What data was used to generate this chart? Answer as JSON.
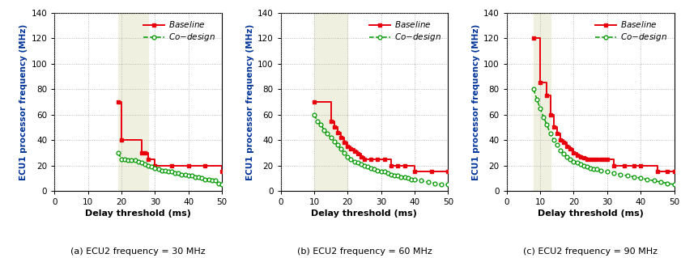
{
  "subplots": [
    {
      "title": "(a) ECU2 frequency = 30 MHz",
      "shaded_region": [
        19,
        28
      ],
      "baseline_x": [
        19,
        20,
        26,
        27,
        28,
        30,
        35,
        40,
        45,
        50
      ],
      "baseline_y": [
        70,
        40,
        30,
        30,
        25,
        20,
        20,
        20,
        20,
        15
      ],
      "codesign_x": [
        19,
        20,
        21,
        22,
        23,
        24,
        25,
        26,
        27,
        28,
        29,
        30,
        31,
        32,
        33,
        34,
        35,
        36,
        37,
        38,
        39,
        40,
        41,
        42,
        43,
        44,
        45,
        46,
        47,
        48,
        49,
        50
      ],
      "codesign_y": [
        30,
        25,
        25,
        24,
        24,
        24,
        23,
        22,
        21,
        20,
        19,
        18,
        17,
        16,
        16,
        15,
        15,
        14,
        14,
        13,
        13,
        12,
        12,
        11,
        11,
        10,
        9,
        9,
        8,
        8,
        6,
        5
      ]
    },
    {
      "title": "(b) ECU2 frequency = 60 MHz",
      "shaded_region": [
        10,
        20
      ],
      "baseline_x": [
        10,
        15,
        16,
        17,
        18,
        19,
        20,
        21,
        22,
        23,
        24,
        25,
        27,
        29,
        31,
        33,
        35,
        37,
        40,
        45,
        50
      ],
      "baseline_y": [
        70,
        55,
        50,
        46,
        42,
        38,
        35,
        33,
        31,
        29,
        27,
        25,
        25,
        25,
        25,
        20,
        20,
        20,
        15,
        15,
        15
      ],
      "codesign_x": [
        10,
        11,
        12,
        13,
        14,
        15,
        16,
        17,
        18,
        19,
        20,
        21,
        22,
        23,
        24,
        25,
        26,
        27,
        28,
        29,
        30,
        31,
        32,
        33,
        34,
        35,
        36,
        37,
        38,
        39,
        40,
        42,
        44,
        46,
        48,
        50
      ],
      "codesign_y": [
        60,
        55,
        52,
        48,
        45,
        42,
        39,
        36,
        33,
        30,
        27,
        25,
        23,
        22,
        21,
        20,
        19,
        18,
        17,
        16,
        15,
        15,
        14,
        13,
        12,
        12,
        11,
        11,
        10,
        9,
        9,
        8,
        7,
        6,
        5,
        5
      ]
    },
    {
      "title": "(c) ECU2 frequency = 90 MHz",
      "shaded_region": [
        8,
        13
      ],
      "baseline_x": [
        8,
        10,
        12,
        13,
        14,
        15,
        16,
        17,
        18,
        19,
        20,
        21,
        22,
        23,
        24,
        25,
        26,
        27,
        28,
        29,
        30,
        32,
        35,
        38,
        40,
        45,
        48,
        50
      ],
      "baseline_y": [
        120,
        85,
        75,
        60,
        50,
        45,
        40,
        38,
        35,
        33,
        30,
        28,
        27,
        26,
        25,
        25,
        25,
        25,
        25,
        25,
        25,
        20,
        20,
        20,
        20,
        15,
        15,
        15
      ],
      "codesign_x": [
        8,
        9,
        10,
        11,
        12,
        13,
        14,
        15,
        16,
        17,
        18,
        19,
        20,
        21,
        22,
        23,
        24,
        25,
        26,
        27,
        28,
        30,
        32,
        34,
        36,
        38,
        40,
        42,
        44,
        46,
        48,
        50
      ],
      "codesign_y": [
        80,
        72,
        65,
        58,
        52,
        45,
        40,
        36,
        32,
        29,
        27,
        25,
        23,
        22,
        21,
        20,
        19,
        18,
        17,
        17,
        16,
        15,
        14,
        13,
        12,
        11,
        10,
        9,
        8,
        7,
        6,
        5
      ]
    }
  ],
  "ylabel": "ECU1 processor frequency (MHz)",
  "xlabel": "Delay threshold (ms)",
  "ylim": [
    0,
    140
  ],
  "xlim": [
    0,
    50
  ],
  "yticks": [
    0,
    20,
    40,
    60,
    80,
    100,
    120,
    140
  ],
  "xticks": [
    0,
    10,
    20,
    30,
    40,
    50
  ],
  "baseline_color": "#e8000d",
  "codesign_color": "#009900",
  "shaded_color": "#f0f0e0",
  "grid_color": "#aaaaaa",
  "ylabel_color": "#003399",
  "title_color": "#000000",
  "fig_width": 8.41,
  "fig_height": 3.19,
  "dpi": 100
}
